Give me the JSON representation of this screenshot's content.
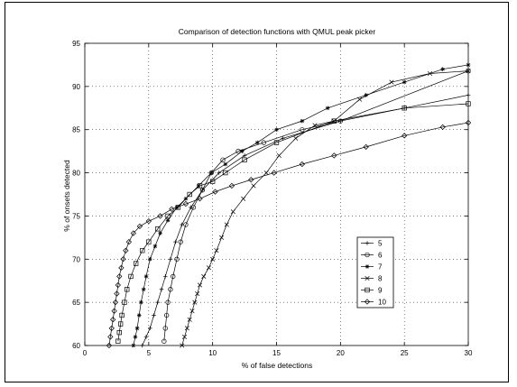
{
  "chart_data": {
    "type": "line",
    "title": "Comparison of detection functions with QMUL peak picker",
    "xlabel": "% of false detections",
    "ylabel": "% of onsets detected",
    "xlim": [
      0,
      30
    ],
    "ylim": [
      60,
      95
    ],
    "xticks": [
      "0",
      "5",
      "10",
      "15",
      "20",
      "25",
      "30"
    ],
    "yticks": [
      "60",
      "65",
      "70",
      "75",
      "80",
      "85",
      "90",
      "95"
    ],
    "grid": true,
    "legend_position": "lower-right",
    "series": [
      {
        "name": "5",
        "marker": "plus",
        "points": [
          [
            4.5,
            60.0
          ],
          [
            4.8,
            61.0
          ],
          [
            5.1,
            62.0
          ],
          [
            5.4,
            63.5
          ],
          [
            5.7,
            65.0
          ],
          [
            6.0,
            66.5
          ],
          [
            6.3,
            68.0
          ],
          [
            6.7,
            70.0
          ],
          [
            7.1,
            72.0
          ],
          [
            7.6,
            74.0
          ],
          [
            8.3,
            76.0
          ],
          [
            9.2,
            78.0
          ],
          [
            10.5,
            80.0
          ],
          [
            12.5,
            82.0
          ],
          [
            15.5,
            84.0
          ],
          [
            20.0,
            86.0
          ],
          [
            25.0,
            87.5
          ],
          [
            30.0,
            89.0
          ]
        ]
      },
      {
        "name": "6",
        "marker": "circle",
        "points": [
          [
            6.2,
            60.5
          ],
          [
            6.3,
            62.0
          ],
          [
            6.4,
            63.5
          ],
          [
            6.5,
            65.0
          ],
          [
            6.7,
            66.5
          ],
          [
            6.9,
            68.0
          ],
          [
            7.2,
            70.0
          ],
          [
            7.5,
            72.0
          ],
          [
            7.9,
            74.0
          ],
          [
            8.5,
            76.0
          ],
          [
            9.2,
            78.0
          ],
          [
            9.9,
            80.0
          ],
          [
            10.8,
            81.5
          ],
          [
            12.0,
            82.5
          ],
          [
            14.0,
            83.5
          ],
          [
            17.0,
            85.0
          ],
          [
            20.0,
            86.0
          ],
          [
            30.0,
            91.8
          ]
        ]
      },
      {
        "name": "7",
        "marker": "star",
        "points": [
          [
            3.8,
            60.0
          ],
          [
            3.95,
            61.0
          ],
          [
            4.1,
            62.0
          ],
          [
            4.25,
            63.5
          ],
          [
            4.4,
            65.0
          ],
          [
            4.6,
            66.5
          ],
          [
            4.8,
            68.0
          ],
          [
            5.1,
            70.0
          ],
          [
            5.5,
            71.5
          ],
          [
            5.9,
            73.0
          ],
          [
            6.5,
            74.5
          ],
          [
            7.2,
            76.0
          ],
          [
            7.9,
            77.0
          ],
          [
            8.9,
            78.5
          ],
          [
            9.9,
            80.0
          ],
          [
            11.0,
            81.0
          ],
          [
            12.3,
            82.5
          ],
          [
            13.5,
            83.5
          ],
          [
            15.0,
            85.0
          ],
          [
            17.0,
            86.0
          ],
          [
            19.0,
            87.5
          ],
          [
            22.0,
            89.0
          ],
          [
            25.0,
            90.5
          ],
          [
            28.0,
            92.0
          ],
          [
            30.0,
            92.5
          ]
        ]
      },
      {
        "name": "8",
        "marker": "x",
        "points": [
          [
            7.6,
            60.0
          ],
          [
            7.8,
            61.0
          ],
          [
            8.0,
            62.0
          ],
          [
            8.2,
            63.0
          ],
          [
            8.4,
            64.0
          ],
          [
            8.6,
            65.0
          ],
          [
            8.8,
            66.0
          ],
          [
            9.0,
            67.0
          ],
          [
            9.3,
            68.0
          ],
          [
            9.7,
            69.0
          ],
          [
            10.0,
            70.0
          ],
          [
            10.3,
            71.0
          ],
          [
            10.7,
            72.5
          ],
          [
            11.1,
            74.0
          ],
          [
            11.6,
            75.5
          ],
          [
            12.4,
            77.0
          ],
          [
            13.2,
            78.5
          ],
          [
            14.2,
            80.0
          ],
          [
            15.2,
            82.0
          ],
          [
            16.5,
            84.0
          ],
          [
            18.0,
            85.5
          ],
          [
            19.5,
            86.0
          ],
          [
            21.5,
            88.5
          ],
          [
            24.0,
            90.5
          ],
          [
            27.0,
            91.5
          ],
          [
            30.0,
            91.8
          ]
        ]
      },
      {
        "name": "9",
        "marker": "square",
        "points": [
          [
            2.6,
            60.5
          ],
          [
            2.7,
            61.5
          ],
          [
            2.8,
            62.5
          ],
          [
            2.9,
            63.5
          ],
          [
            3.1,
            65.0
          ],
          [
            3.3,
            66.5
          ],
          [
            3.6,
            68.0
          ],
          [
            4.0,
            69.5
          ],
          [
            4.5,
            71.0
          ],
          [
            5.0,
            72.0
          ],
          [
            5.7,
            73.5
          ],
          [
            6.5,
            75.0
          ],
          [
            7.3,
            76.0
          ],
          [
            8.2,
            77.5
          ],
          [
            9.0,
            78.5
          ],
          [
            10.0,
            79.0
          ],
          [
            11.0,
            80.0
          ],
          [
            12.5,
            81.5
          ],
          [
            15.0,
            83.5
          ],
          [
            19.5,
            86.0
          ],
          [
            25.0,
            87.5
          ],
          [
            30.0,
            88.0
          ]
        ]
      },
      {
        "name": "10",
        "marker": "diamond",
        "points": [
          [
            1.9,
            60.0
          ],
          [
            2.0,
            61.0
          ],
          [
            2.1,
            62.0
          ],
          [
            2.2,
            63.0
          ],
          [
            2.3,
            64.0
          ],
          [
            2.4,
            65.0
          ],
          [
            2.5,
            66.0
          ],
          [
            2.6,
            67.0
          ],
          [
            2.7,
            68.0
          ],
          [
            2.85,
            69.0
          ],
          [
            3.0,
            70.0
          ],
          [
            3.2,
            71.0
          ],
          [
            3.45,
            72.0
          ],
          [
            3.8,
            73.0
          ],
          [
            4.3,
            73.8
          ],
          [
            5.0,
            74.4
          ],
          [
            5.9,
            75.0
          ],
          [
            6.8,
            75.8
          ],
          [
            7.9,
            76.4
          ],
          [
            9.0,
            77.0
          ],
          [
            10.2,
            77.8
          ],
          [
            11.5,
            78.5
          ],
          [
            13.0,
            79.2
          ],
          [
            14.8,
            80.0
          ],
          [
            17.0,
            81.0
          ],
          [
            19.5,
            82.0
          ],
          [
            22.0,
            83.0
          ],
          [
            25.0,
            84.3
          ],
          [
            28.0,
            85.3
          ],
          [
            30.0,
            85.8
          ]
        ]
      }
    ]
  }
}
